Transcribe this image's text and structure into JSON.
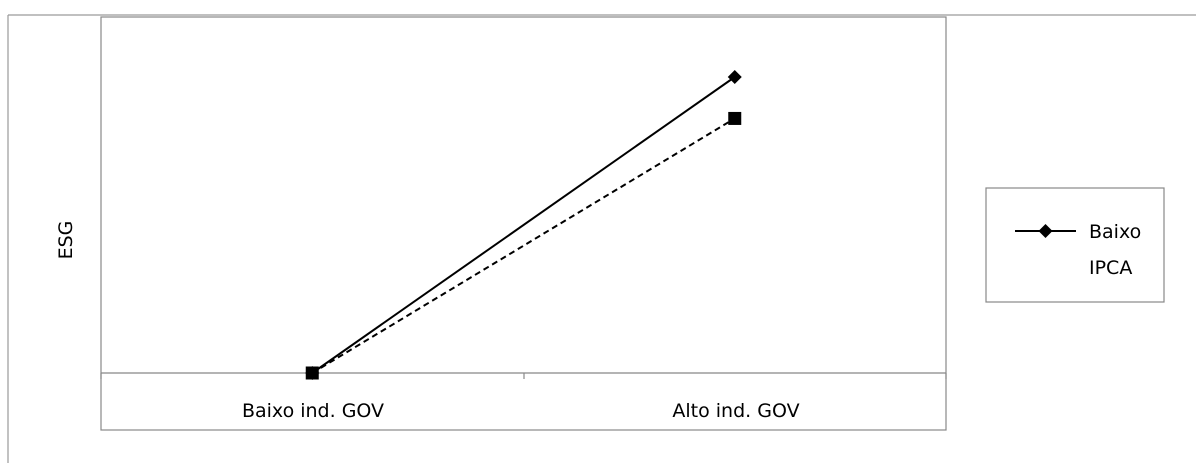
{
  "chart_data": {
    "type": "line",
    "title": "",
    "xlabel": "",
    "ylabel": "ESG",
    "categories": [
      "Baixo ind. GOV",
      "Alto ind. GOV"
    ],
    "ylim": [
      0,
      1
    ],
    "grid": false,
    "legend_position": "right",
    "series": [
      {
        "name": "Baixo IPCA",
        "values": [
          0,
          1.0
        ],
        "color": "#000000",
        "line_style": "solid",
        "marker": "diamond"
      },
      {
        "values": [
          0,
          0.86
        ],
        "color": "#000000",
        "line_style": "dashed",
        "marker": "square"
      }
    ]
  }
}
